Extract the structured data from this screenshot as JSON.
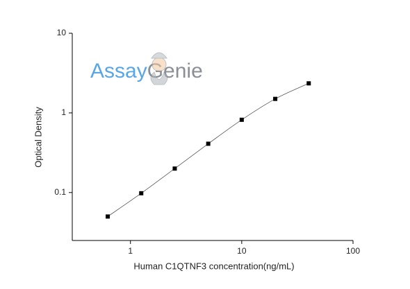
{
  "chart_data": {
    "type": "scatter",
    "xlabel": "Human C1QTNF3 concentration(ng/mL)",
    "ylabel": "Optical Density",
    "watermark": [
      "Assay",
      "Genie"
    ],
    "x": [
      0.625,
      1.25,
      2.5,
      5,
      10,
      20,
      40
    ],
    "series": [
      {
        "name": null,
        "color": "#000000",
        "values": [
          0.05,
          0.098,
          0.2,
          0.41,
          0.82,
          1.5,
          2.35
        ]
      }
    ],
    "xlim": [
      0.3,
      100
    ],
    "xticks": [
      1,
      10,
      100
    ],
    "xscale": "log",
    "ylim": [
      0.025,
      10
    ],
    "yticks": [
      0.1,
      1,
      10
    ],
    "yscale": "log",
    "grid": false,
    "curve": true
  }
}
